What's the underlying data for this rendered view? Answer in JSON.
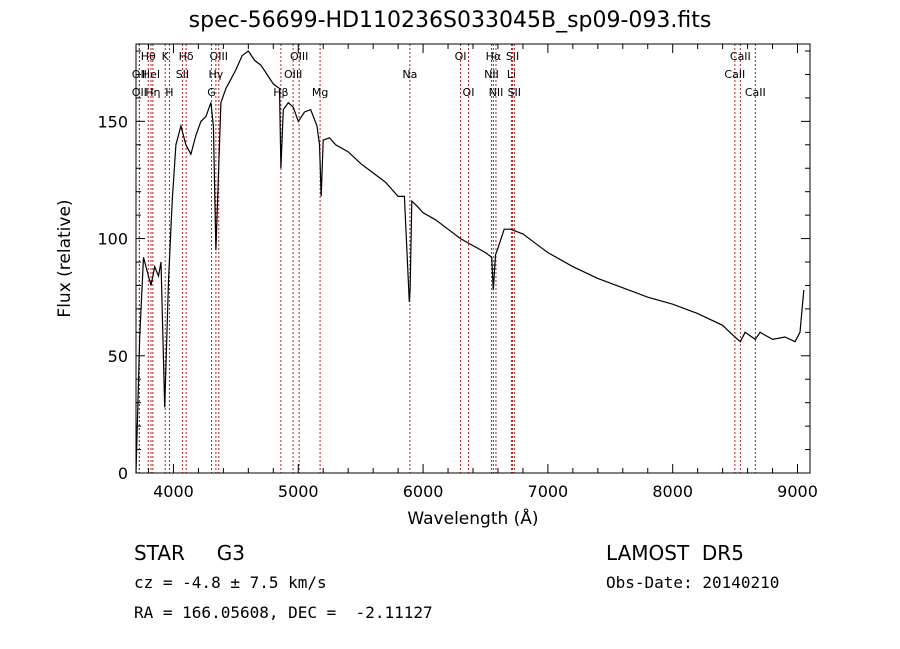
{
  "header": {
    "title": "spec-56699-HD110236S033045B_sp09-093.fits"
  },
  "info": {
    "object_line": "STAR     G3",
    "survey": "LAMOST  DR5",
    "cz": "cz = -4.8 ± 7.5 km/s",
    "obs_date": "Obs-Date: 20140210",
    "radec": "RA = 166.05608, DEC =  -2.11127"
  },
  "colors": {
    "spectrum": "#000000",
    "line_markers": "#b22222",
    "axes": "#000000"
  },
  "chart_data": {
    "type": "line",
    "xlabel": "Wavelength (Å)",
    "ylabel": "Flux (relative)",
    "xlim": [
      3700,
      9100
    ],
    "ylim": [
      0,
      183
    ],
    "xticks": [
      4000,
      5000,
      6000,
      7000,
      8000,
      9000
    ],
    "yticks": [
      0,
      50,
      100,
      150
    ],
    "grid": false,
    "series": [
      {
        "x": [
          3700,
          3730,
          3760,
          3790,
          3820,
          3850,
          3880,
          3900,
          3930,
          3960,
          3990,
          4020,
          4060,
          4100,
          4140,
          4180,
          4220,
          4260,
          4300,
          4320,
          4340,
          4380,
          4420,
          4460,
          4500,
          4550,
          4600,
          4650,
          4700,
          4750,
          4800,
          4850,
          4861,
          4880,
          4920,
          4960,
          5000,
          5050,
          5100,
          5150,
          5170,
          5184,
          5200,
          5250,
          5300,
          5400,
          5500,
          5600,
          5700,
          5800,
          5850,
          5890,
          5896,
          5910,
          5950,
          6000,
          6100,
          6200,
          6300,
          6400,
          6500,
          6550,
          6563,
          6580,
          6600,
          6650,
          6700,
          6800,
          6900,
          7000,
          7200,
          7400,
          7600,
          7800,
          8000,
          8200,
          8400,
          8498,
          8542,
          8580,
          8662,
          8700,
          8800,
          8900,
          8980,
          9020,
          9050
        ],
        "y": [
          0,
          58,
          92,
          86,
          80,
          88,
          84,
          90,
          28,
          82,
          116,
          140,
          148,
          140,
          136,
          144,
          150,
          152,
          158,
          148,
          95,
          158,
          164,
          168,
          172,
          178,
          180,
          176,
          174,
          170,
          166,
          164,
          130,
          155,
          158,
          156,
          150,
          154,
          155,
          148,
          140,
          118,
          142,
          143,
          140,
          137,
          132,
          128,
          124,
          118,
          118,
          73,
          78,
          116,
          114,
          111,
          108,
          104,
          100,
          97,
          94,
          92,
          78,
          93,
          96,
          104,
          104,
          102,
          98,
          94,
          88,
          83,
          79,
          75,
          72,
          68,
          63,
          58,
          56,
          60,
          57,
          60,
          57,
          58,
          56,
          60,
          78
        ]
      }
    ],
    "line_markers": [
      {
        "label": "Hθ",
        "x": 3798,
        "row": 0
      },
      {
        "label": "OII",
        "x": 3727,
        "row": 1
      },
      {
        "label": "OII",
        "x": 3727,
        "row": 2
      },
      {
        "label": "HeI",
        "x": 3820,
        "row": 1
      },
      {
        "label": "Hη",
        "x": 3835,
        "row": 2
      },
      {
        "label": "K",
        "x": 3934,
        "row": 0
      },
      {
        "label": "H",
        "x": 3968,
        "row": 2
      },
      {
        "label": "SII",
        "x": 4072,
        "row": 1
      },
      {
        "label": "Hδ",
        "x": 4102,
        "row": 0
      },
      {
        "label": "OIII",
        "x": 4363,
        "row": 0
      },
      {
        "label": "Hγ",
        "x": 4340,
        "row": 1
      },
      {
        "label": "G",
        "x": 4305,
        "row": 2
      },
      {
        "label": "OIII",
        "x": 5007,
        "row": 0
      },
      {
        "label": "OIII",
        "x": 4959,
        "row": 1
      },
      {
        "label": "Hβ",
        "x": 4861,
        "row": 2
      },
      {
        "label": "Mg",
        "x": 5175,
        "row": 2
      },
      {
        "label": "Na",
        "x": 5894,
        "row": 1
      },
      {
        "label": "OI",
        "x": 6300,
        "row": 0
      },
      {
        "label": "OI",
        "x": 6364,
        "row": 2
      },
      {
        "label": "Hα",
        "x": 6563,
        "row": 0
      },
      {
        "label": "NII",
        "x": 6548,
        "row": 1
      },
      {
        "label": "NII",
        "x": 6584,
        "row": 2
      },
      {
        "label": "SII",
        "x": 6717,
        "row": 0
      },
      {
        "label": "Li",
        "x": 6708,
        "row": 1
      },
      {
        "label": "SII",
        "x": 6731,
        "row": 2
      },
      {
        "label": "CaII",
        "x": 8542,
        "row": 0
      },
      {
        "label": "CaII",
        "x": 8498,
        "row": 1
      },
      {
        "label": "CaII",
        "x": 8662,
        "row": 2
      }
    ]
  }
}
